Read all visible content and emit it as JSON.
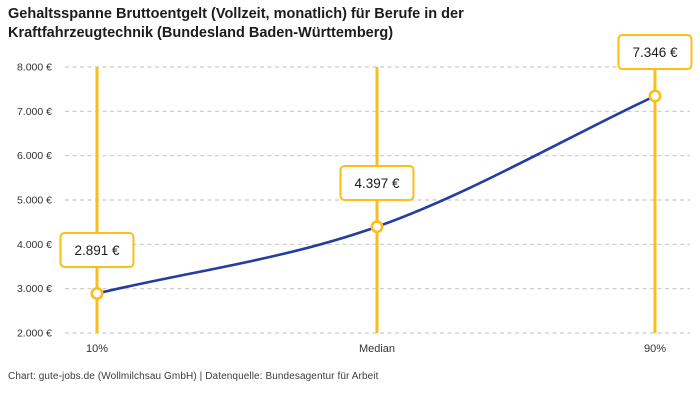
{
  "title": "Gehaltsspanne Bruttoentgelt (Vollzeit, monatlich) für Berufe in der\nKraftfahrzeugtechnik (Bundesland Baden-Württemberg)",
  "footer": "Chart: gute-jobs.de (Wollmilchsau GmbH) | Datenquelle: Bundesagentur für Arbeit",
  "chart_data": {
    "type": "line",
    "categories": [
      "10%",
      "Median",
      "90%"
    ],
    "values": [
      2891,
      4397,
      7346
    ],
    "point_labels": [
      "2.891 €",
      "4.397 €",
      "7.346 €"
    ],
    "y_ticks": [
      2000,
      3000,
      4000,
      5000,
      6000,
      7000,
      8000
    ],
    "y_tick_labels": [
      "2.000 €",
      "3.000 €",
      "4.000 €",
      "5.000 €",
      "6.000 €",
      "7.000 €",
      "8.000 €"
    ],
    "ylim": [
      2000,
      8000
    ],
    "xlabel": "",
    "ylabel": "",
    "grid": "horizontal-dashed",
    "legend": "none",
    "colors": {
      "line": "#243DA0",
      "accent": "#FBBE18",
      "grid": "#C9C9C9",
      "axis_text": "#333333",
      "marker_fill": "#FFFFFF"
    }
  }
}
